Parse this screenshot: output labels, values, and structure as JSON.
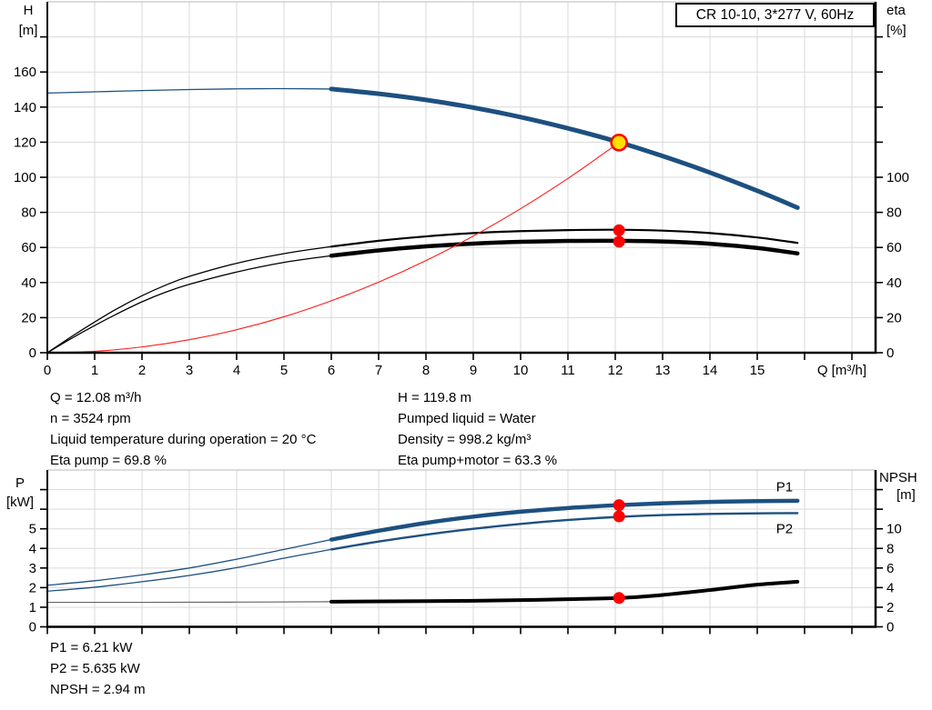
{
  "title_box": "CR 10-10, 3*277 V, 60Hz",
  "colors": {
    "blue": "#1d5080",
    "black": "#000000",
    "red": "#ff1a1a",
    "marker_red": "#ff0000",
    "duty_yellow": "#ffe100",
    "grid": "#d9d9d9",
    "top_border": "#c8c8c8",
    "axis": "#000000",
    "npsh_thin": "#666666"
  },
  "info_top_left": {
    "lines": [
      "Q = 12.08 m³/h",
      "n = 3524 rpm",
      "Liquid temperature during operation = 20 °C",
      "Eta pump = 69.8 %"
    ]
  },
  "info_top_right": {
    "lines": [
      "H = 119.8 m",
      "Pumped liquid = Water",
      "Density = 998.2 kg/m³",
      "Eta pump+motor = 63.3 %"
    ]
  },
  "info_bottom": {
    "lines": [
      "P1 = 6.21 kW",
      "P2 = 5.635 kW",
      "NPSH = 2.94 m"
    ]
  },
  "chart_data": [
    {
      "type": "line",
      "title": "CR 10-10, 3*277 V, 60Hz",
      "x": {
        "label": "Q [m³/h]",
        "min": 0,
        "max": 17.5,
        "tick_values": [
          0,
          1,
          2,
          3,
          4,
          5,
          6,
          7,
          8,
          9,
          10,
          11,
          12,
          13,
          14,
          15,
          16,
          17
        ],
        "labeled_ticks": [
          0,
          1,
          2,
          3,
          4,
          5,
          6,
          7,
          8,
          9,
          10,
          11,
          12,
          13,
          14,
          15
        ],
        "grid_values": [
          1,
          2,
          3,
          4,
          5,
          6,
          7,
          8,
          9,
          10,
          11,
          12,
          13,
          14,
          15,
          16,
          17
        ]
      },
      "y_left": {
        "title_lines": [
          "H",
          "[m]"
        ],
        "min": 0,
        "max": 200,
        "tick_values": [
          0,
          20,
          40,
          60,
          80,
          100,
          120,
          140,
          160,
          180
        ],
        "labeled_ticks": [
          0,
          20,
          40,
          60,
          80,
          100,
          120,
          140,
          160
        ],
        "grid_values": [
          20,
          40,
          60,
          80,
          100,
          120,
          140,
          160,
          180
        ]
      },
      "y_right": {
        "title_lines": [
          "eta",
          "[%]"
        ],
        "min": 0,
        "max": 200,
        "tick_values": [
          0,
          20,
          40,
          60,
          80,
          100,
          120,
          140,
          160,
          180
        ],
        "labeled_ticks": [
          0,
          20,
          40,
          60,
          80,
          100
        ]
      },
      "series": [
        {
          "name": "QH curve low-flow (thin)",
          "id": "hq-curve-thin",
          "axis": "left",
          "color": "blue",
          "width": 1.3,
          "points": [
            [
              0,
              148
            ],
            [
              1,
              148.7
            ],
            [
              2,
              149.4
            ],
            [
              3,
              150.0
            ],
            [
              4,
              150.4
            ],
            [
              5,
              150.5
            ],
            [
              6,
              150.3
            ]
          ]
        },
        {
          "name": "QH curve operating range (thick)",
          "id": "hq-curve",
          "axis": "left",
          "color": "blue",
          "width": 5,
          "points": [
            [
              6,
              150.3
            ],
            [
              7,
              147.6
            ],
            [
              8,
              144.1
            ],
            [
              9,
              139.7
            ],
            [
              10,
              134.3
            ],
            [
              11,
              127.9
            ],
            [
              12,
              120.6
            ],
            [
              13,
              112.1
            ],
            [
              14,
              102.7
            ],
            [
              15,
              92.3
            ],
            [
              15.85,
              82.7
            ]
          ]
        },
        {
          "name": "Eta pump low-flow (thin)",
          "id": "eta-pump-thin-low",
          "axis": "right",
          "color": "black",
          "width": 1.3,
          "points": [
            [
              0,
              0
            ],
            [
              0.5,
              9
            ],
            [
              1,
              17.5
            ],
            [
              1.5,
              25.5
            ],
            [
              2,
              32.5
            ],
            [
              2.5,
              38.5
            ],
            [
              3,
              43.5
            ],
            [
              4,
              51
            ],
            [
              5,
              56.5
            ],
            [
              6,
              60.5
            ]
          ]
        },
        {
          "name": "Eta pump",
          "id": "eta-pump-curve",
          "axis": "right",
          "color": "black",
          "width": 2.2,
          "points": [
            [
              6,
              60.5
            ],
            [
              7,
              63.8
            ],
            [
              8,
              66.3
            ],
            [
              9,
              68.2
            ],
            [
              10,
              69.3
            ],
            [
              11,
              69.9
            ],
            [
              12,
              70.1
            ],
            [
              13,
              69.6
            ],
            [
              14,
              68.2
            ],
            [
              15,
              65.7
            ],
            [
              15.85,
              62.6
            ]
          ]
        },
        {
          "name": "Eta pump+motor low-flow (thin)",
          "id": "eta-pump-motor-thin-low",
          "axis": "right",
          "color": "black",
          "width": 1.3,
          "points": [
            [
              0,
              0
            ],
            [
              0.5,
              8
            ],
            [
              1,
              15.5
            ],
            [
              1.5,
              22.5
            ],
            [
              2,
              29
            ],
            [
              2.5,
              34.5
            ],
            [
              3,
              39
            ],
            [
              4,
              46
            ],
            [
              5,
              51.5
            ],
            [
              6,
              55.3
            ]
          ]
        },
        {
          "name": "Eta pump+motor",
          "id": "eta-pump-motor-curve",
          "axis": "right",
          "color": "black",
          "width": 4.5,
          "points": [
            [
              6,
              55.3
            ],
            [
              7,
              58.3
            ],
            [
              8,
              60.6
            ],
            [
              9,
              62.2
            ],
            [
              10,
              63.2
            ],
            [
              11,
              63.7
            ],
            [
              12,
              63.8
            ],
            [
              13,
              63.4
            ],
            [
              14,
              62.1
            ],
            [
              15,
              59.7
            ],
            [
              15.85,
              56.6
            ]
          ]
        },
        {
          "name": "Resulting curve to duty point",
          "id": "duty-parabola",
          "axis": "left",
          "color": "red",
          "width": 1.1,
          "points": [
            [
              0,
              0
            ],
            [
              1,
              0.8
            ],
            [
              2,
              3.3
            ],
            [
              3,
              7.4
            ],
            [
              4,
              13.1
            ],
            [
              5,
              20.5
            ],
            [
              6,
              29.6
            ],
            [
              7,
              40.2
            ],
            [
              8,
              52.5
            ],
            [
              9,
              66.5
            ],
            [
              10,
              82.1
            ],
            [
              11,
              99.3
            ],
            [
              12.08,
              119.8
            ]
          ]
        }
      ],
      "markers": [
        {
          "name": "duty-point",
          "x": 12.08,
          "y": 119.8,
          "axis": "left",
          "kind": "duty"
        },
        {
          "name": "eta-pump-point",
          "x": 12.08,
          "y": 69.8,
          "axis": "right",
          "kind": "dot"
        },
        {
          "name": "eta-pump-motor-point",
          "x": 12.08,
          "y": 63.3,
          "axis": "right",
          "kind": "dot"
        }
      ],
      "annotations": []
    },
    {
      "type": "line",
      "title": "Power and NPSH curves",
      "x": {
        "label": null,
        "min": 0,
        "max": 17.5,
        "tick_values": [
          0,
          1,
          2,
          3,
          4,
          5,
          6,
          7,
          8,
          9,
          10,
          11,
          12,
          13,
          14,
          15,
          16,
          17
        ],
        "labeled_ticks": [],
        "grid_values": [
          1,
          2,
          3,
          4,
          5,
          6,
          7,
          8,
          9,
          10,
          11,
          12,
          13,
          14,
          15,
          16,
          17
        ]
      },
      "y_left": {
        "title_lines": [
          "P",
          "[kW]"
        ],
        "min": 0,
        "max": 8,
        "tick_values": [
          0,
          1,
          2,
          3,
          4,
          5,
          6,
          7
        ],
        "labeled_ticks": [
          0,
          1,
          2,
          3,
          4,
          5
        ],
        "grid_values": [
          1,
          2,
          3,
          4,
          5,
          6,
          7
        ]
      },
      "y_right": {
        "title_lines": [
          "NPSH",
          "[m]"
        ],
        "min": 0,
        "max": 16,
        "tick_values": [
          0,
          2,
          4,
          6,
          8,
          10,
          12,
          14
        ],
        "labeled_ticks": [
          0,
          2,
          4,
          6,
          8,
          10
        ]
      },
      "series": [
        {
          "name": "P1 low-flow (thin)",
          "id": "p1-thin-low",
          "axis": "left",
          "color": "blue",
          "width": 1.3,
          "points": [
            [
              0,
              2.12
            ],
            [
              1,
              2.35
            ],
            [
              2,
              2.65
            ],
            [
              3,
              3.0
            ],
            [
              4,
              3.45
            ],
            [
              5,
              3.95
            ],
            [
              6,
              4.45
            ]
          ]
        },
        {
          "name": "P1",
          "id": "p1-curve",
          "axis": "left",
          "color": "blue",
          "width": 4.5,
          "points": [
            [
              6,
              4.45
            ],
            [
              7,
              4.9
            ],
            [
              8,
              5.3
            ],
            [
              9,
              5.62
            ],
            [
              10,
              5.87
            ],
            [
              11,
              6.06
            ],
            [
              12,
              6.2
            ],
            [
              13,
              6.3
            ],
            [
              14,
              6.37
            ],
            [
              15,
              6.41
            ],
            [
              15.85,
              6.43
            ]
          ]
        },
        {
          "name": "P2 low-flow (thin)",
          "id": "p2-thin-low",
          "axis": "left",
          "color": "blue",
          "width": 1.3,
          "points": [
            [
              0,
              1.82
            ],
            [
              1,
              2.02
            ],
            [
              2,
              2.3
            ],
            [
              3,
              2.62
            ],
            [
              4,
              3.02
            ],
            [
              5,
              3.5
            ],
            [
              6,
              3.95
            ]
          ]
        },
        {
          "name": "P2",
          "id": "p2-curve",
          "axis": "left",
          "color": "blue",
          "width": 2.4,
          "points": [
            [
              6,
              3.95
            ],
            [
              7,
              4.35
            ],
            [
              8,
              4.7
            ],
            [
              9,
              5.0
            ],
            [
              10,
              5.25
            ],
            [
              11,
              5.45
            ],
            [
              12,
              5.6
            ],
            [
              13,
              5.7
            ],
            [
              14,
              5.76
            ],
            [
              15,
              5.79
            ],
            [
              15.85,
              5.8
            ]
          ]
        },
        {
          "name": "NPSH low-flow (thin)",
          "id": "npsh-thin-low",
          "axis": "right",
          "color": "npsh_thin",
          "width": 1.2,
          "points": [
            [
              0,
              2.5
            ],
            [
              2,
              2.5
            ],
            [
              4,
              2.52
            ],
            [
              6,
              2.56
            ]
          ]
        },
        {
          "name": "NPSH",
          "id": "npsh-curve",
          "axis": "right",
          "color": "black",
          "width": 4,
          "points": [
            [
              6,
              2.56
            ],
            [
              8,
              2.62
            ],
            [
              9,
              2.66
            ],
            [
              10,
              2.72
            ],
            [
              11,
              2.82
            ],
            [
              12.08,
              2.94
            ],
            [
              13,
              3.25
            ],
            [
              14,
              3.75
            ],
            [
              15,
              4.3
            ],
            [
              15.85,
              4.6
            ]
          ]
        }
      ],
      "markers": [
        {
          "name": "p1-point",
          "x": 12.08,
          "y": 6.21,
          "axis": "left",
          "kind": "dot"
        },
        {
          "name": "p2-point",
          "x": 12.08,
          "y": 5.635,
          "axis": "left",
          "kind": "dot"
        },
        {
          "name": "npsh-point",
          "x": 12.08,
          "y": 2.94,
          "axis": "right",
          "kind": "dot"
        }
      ],
      "annotations": [
        {
          "text": "P1",
          "x": 15.4,
          "y": 6.9,
          "axis": "left",
          "color": "blue"
        },
        {
          "text": "P2",
          "x": 15.4,
          "y": 4.78,
          "axis": "left",
          "color": "blue"
        }
      ]
    }
  ]
}
